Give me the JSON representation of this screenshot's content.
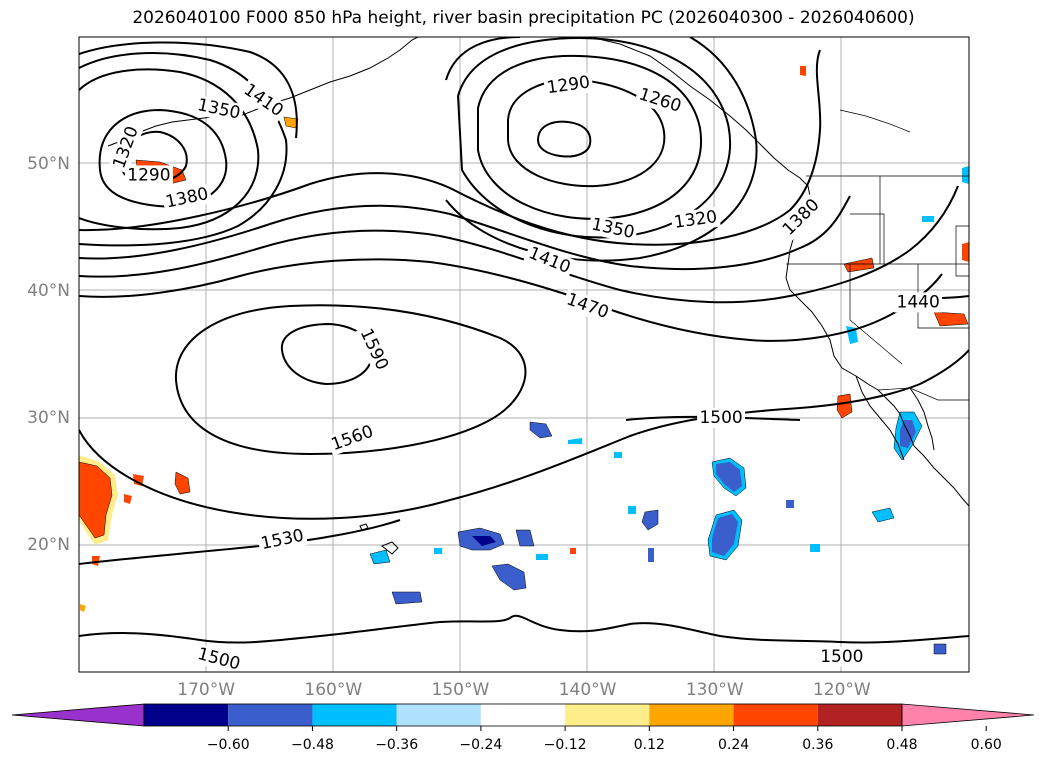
{
  "title": "2026040100 F000 850 hPa height, river basin precipitation PC (2026040300 - 2026040600)",
  "map": {
    "lat_labels": [
      {
        "text": "50°N",
        "lat": 50
      },
      {
        "text": "40°N",
        "lat": 40
      },
      {
        "text": "30°N",
        "lat": 30
      },
      {
        "text": "20°N",
        "lat": 20
      }
    ],
    "lon_labels": [
      {
        "text": "170°W",
        "lon": -170
      },
      {
        "text": "160°W",
        "lon": -160
      },
      {
        "text": "150°W",
        "lon": -150
      },
      {
        "text": "140°W",
        "lon": -140
      },
      {
        "text": "130°W",
        "lon": -130
      },
      {
        "text": "120°W",
        "lon": -120
      }
    ],
    "contour_labels": [
      {
        "text": "1410",
        "lon": -165.5,
        "lat": 55.0,
        "rot": 35
      },
      {
        "text": "1350",
        "lon": -169.0,
        "lat": 54.3,
        "rot": 12
      },
      {
        "text": "1320",
        "lon": -176.3,
        "lat": 51.3,
        "rot": -70
      },
      {
        "text": "1290",
        "lon": -174.5,
        "lat": 49.1,
        "rot": 0
      },
      {
        "text": "1380",
        "lon": -171.5,
        "lat": 47.3,
        "rot": -12
      },
      {
        "text": "1290",
        "lon": -141.5,
        "lat": 56.2,
        "rot": -8
      },
      {
        "text": "1260",
        "lon": -134.3,
        "lat": 55.0,
        "rot": 18
      },
      {
        "text": "1320",
        "lon": -131.5,
        "lat": 45.6,
        "rot": -8
      },
      {
        "text": "1350",
        "lon": -138.0,
        "lat": 44.9,
        "rot": 12
      },
      {
        "text": "1380",
        "lon": -123.2,
        "lat": 45.8,
        "rot": -45
      },
      {
        "text": "1410",
        "lon": -143.0,
        "lat": 42.4,
        "rot": 22
      },
      {
        "text": "1470",
        "lon": -140.0,
        "lat": 38.8,
        "rot": 20
      },
      {
        "text": "1440",
        "lon": -114.0,
        "lat": 39.1,
        "rot": 0
      },
      {
        "text": "1590",
        "lon": -156.8,
        "lat": 35.4,
        "rot": 65
      },
      {
        "text": "1560",
        "lon": -158.5,
        "lat": 28.4,
        "rot": -20
      },
      {
        "text": "1500",
        "lon": -129.5,
        "lat": 30.0,
        "rot": 0
      },
      {
        "text": "1530",
        "lon": -164.0,
        "lat": 20.4,
        "rot": -12
      },
      {
        "text": "1500",
        "lon": -169.0,
        "lat": 11.0,
        "rot": 15
      },
      {
        "text": "1500",
        "lon": -120.0,
        "lat": 11.2,
        "rot": 0
      }
    ]
  },
  "colorbar": {
    "colors": [
      "#9932cc",
      "#00008b",
      "#3a5fcd",
      "#00bfff",
      "#b0e2ff",
      "#ffffff",
      "#ffec8b",
      "#ffa500",
      "#ff4500",
      "#b22222",
      "#ff82ab"
    ],
    "tick_labels": [
      "−0.60",
      "−0.48",
      "−0.36",
      "−0.24",
      "−0.12",
      "0.12",
      "0.24",
      "0.36",
      "0.48",
      "0.60"
    ]
  }
}
